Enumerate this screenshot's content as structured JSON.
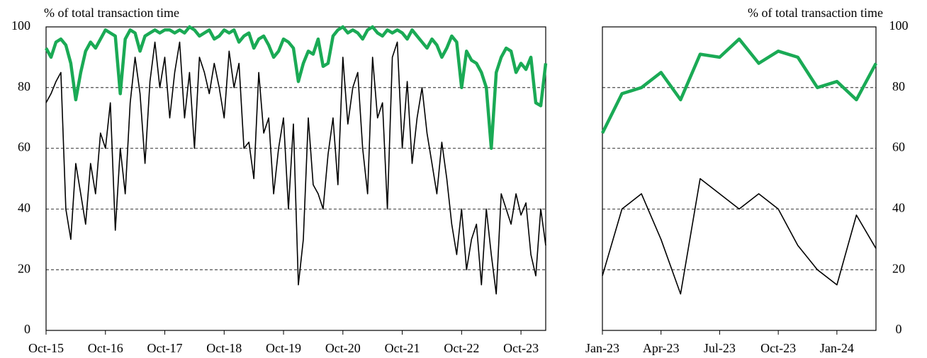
{
  "chart_data": [
    {
      "type": "line",
      "ylabel": "% of total transaction time",
      "ytick_side": "left",
      "x": [
        "2015-10",
        "2015-11",
        "2015-12",
        "2016-01",
        "2016-02",
        "2016-03",
        "2016-04",
        "2016-05",
        "2016-06",
        "2016-07",
        "2016-08",
        "2016-09",
        "2016-10",
        "2016-11",
        "2016-12",
        "2017-01",
        "2017-02",
        "2017-03",
        "2017-04",
        "2017-05",
        "2017-06",
        "2017-07",
        "2017-08",
        "2017-09",
        "2017-10",
        "2017-11",
        "2017-12",
        "2018-01",
        "2018-02",
        "2018-03",
        "2018-04",
        "2018-05",
        "2018-06",
        "2018-07",
        "2018-08",
        "2018-09",
        "2018-10",
        "2018-11",
        "2018-12",
        "2019-01",
        "2019-02",
        "2019-03",
        "2019-04",
        "2019-05",
        "2019-06",
        "2019-07",
        "2019-08",
        "2019-09",
        "2019-10",
        "2019-11",
        "2019-12",
        "2020-01",
        "2020-02",
        "2020-03",
        "2020-04",
        "2020-05",
        "2020-06",
        "2020-07",
        "2020-08",
        "2020-09",
        "2020-10",
        "2020-11",
        "2020-12",
        "2021-01",
        "2021-02",
        "2021-03",
        "2021-04",
        "2021-05",
        "2021-06",
        "2021-07",
        "2021-08",
        "2021-09",
        "2021-10",
        "2021-11",
        "2021-12",
        "2022-01",
        "2022-02",
        "2022-03",
        "2022-04",
        "2022-05",
        "2022-06",
        "2022-07",
        "2022-08",
        "2022-09",
        "2022-10",
        "2022-11",
        "2022-12",
        "2023-01",
        "2023-02",
        "2023-03",
        "2023-04",
        "2023-05",
        "2023-06",
        "2023-07",
        "2023-08",
        "2023-09",
        "2023-10",
        "2023-11",
        "2023-12",
        "2024-01",
        "2024-02",
        "2024-03"
      ],
      "series": [
        {
          "color": "#000000",
          "values": [
            75,
            78,
            82,
            85,
            40,
            30,
            55,
            45,
            35,
            55,
            45,
            65,
            60,
            75,
            33,
            60,
            45,
            75,
            90,
            78,
            55,
            82,
            95,
            80,
            90,
            70,
            85,
            95,
            70,
            85,
            60,
            90,
            85,
            78,
            88,
            80,
            70,
            92,
            80,
            88,
            60,
            62,
            50,
            85,
            65,
            70,
            45,
            60,
            70,
            40,
            68,
            15,
            30,
            70,
            48,
            45,
            40,
            58,
            70,
            48,
            90,
            68,
            80,
            85,
            60,
            45,
            90,
            70,
            75,
            40,
            90,
            95,
            60,
            82,
            55,
            70,
            80,
            65,
            55,
            45,
            62,
            50,
            35,
            25,
            40,
            20,
            30,
            35,
            15,
            40,
            25,
            12,
            45,
            40,
            35,
            45,
            38,
            42,
            25,
            18,
            40,
            28
          ]
        },
        {
          "color": "#1aaa55",
          "values": [
            93,
            90,
            95,
            96,
            94,
            88,
            76,
            85,
            92,
            95,
            93,
            96,
            99,
            98,
            97,
            78,
            96,
            99,
            98,
            92,
            97,
            98,
            99,
            98,
            99,
            99,
            98,
            99,
            98,
            100,
            99,
            97,
            98,
            99,
            96,
            97,
            99,
            98,
            99,
            95,
            97,
            98,
            93,
            96,
            97,
            94,
            90,
            92,
            96,
            95,
            93,
            82,
            88,
            92,
            91,
            96,
            87,
            88,
            97,
            99,
            100,
            98,
            99,
            98,
            96,
            99,
            100,
            98,
            97,
            99,
            98,
            99,
            98,
            96,
            99,
            97,
            95,
            93,
            96,
            94,
            90,
            93,
            97,
            95,
            80,
            92,
            89,
            88,
            85,
            80,
            60,
            85,
            90,
            93,
            92,
            85,
            88,
            86,
            90,
            75,
            74,
            88
          ]
        }
      ],
      "xlim": [
        "2015-10",
        "2024-03"
      ],
      "xticks": [
        {
          "value": "2015-10",
          "label": "Oct-15"
        },
        {
          "value": "2016-10",
          "label": "Oct-16"
        },
        {
          "value": "2017-10",
          "label": "Oct-17"
        },
        {
          "value": "2018-10",
          "label": "Oct-18"
        },
        {
          "value": "2019-10",
          "label": "Oct-19"
        },
        {
          "value": "2020-10",
          "label": "Oct-20"
        },
        {
          "value": "2021-10",
          "label": "Oct-21"
        },
        {
          "value": "2022-10",
          "label": "Oct-22"
        },
        {
          "value": "2023-10",
          "label": "Oct-23"
        }
      ],
      "ylim": [
        0,
        100
      ],
      "yticks": [
        0,
        20,
        40,
        60,
        80,
        100
      ],
      "grid": true
    },
    {
      "type": "line",
      "ylabel": "% of total transaction time",
      "ytick_side": "right",
      "x": [
        "2023-01",
        "2023-02",
        "2023-03",
        "2023-04",
        "2023-05",
        "2023-06",
        "2023-07",
        "2023-08",
        "2023-09",
        "2023-10",
        "2023-11",
        "2023-12",
        "2024-01",
        "2024-02",
        "2024-03"
      ],
      "series": [
        {
          "color": "#000000",
          "values": [
            18,
            40,
            45,
            30,
            12,
            50,
            45,
            40,
            45,
            40,
            28,
            20,
            15,
            38,
            27
          ]
        },
        {
          "color": "#1aaa55",
          "values": [
            65,
            78,
            80,
            85,
            76,
            91,
            90,
            96,
            88,
            92,
            90,
            80,
            82,
            76,
            88
          ]
        }
      ],
      "xlim": [
        "2023-01",
        "2024-03"
      ],
      "xticks": [
        {
          "value": "2023-01",
          "label": "Jan-23"
        },
        {
          "value": "2023-04",
          "label": "Apr-23"
        },
        {
          "value": "2023-07",
          "label": "Jul-23"
        },
        {
          "value": "2023-10",
          "label": "Oct-23"
        },
        {
          "value": "2024-01",
          "label": "Jan-24"
        }
      ],
      "ylim": [
        0,
        100
      ],
      "yticks": [
        0,
        20,
        40,
        60,
        80,
        100
      ],
      "grid": true
    }
  ]
}
